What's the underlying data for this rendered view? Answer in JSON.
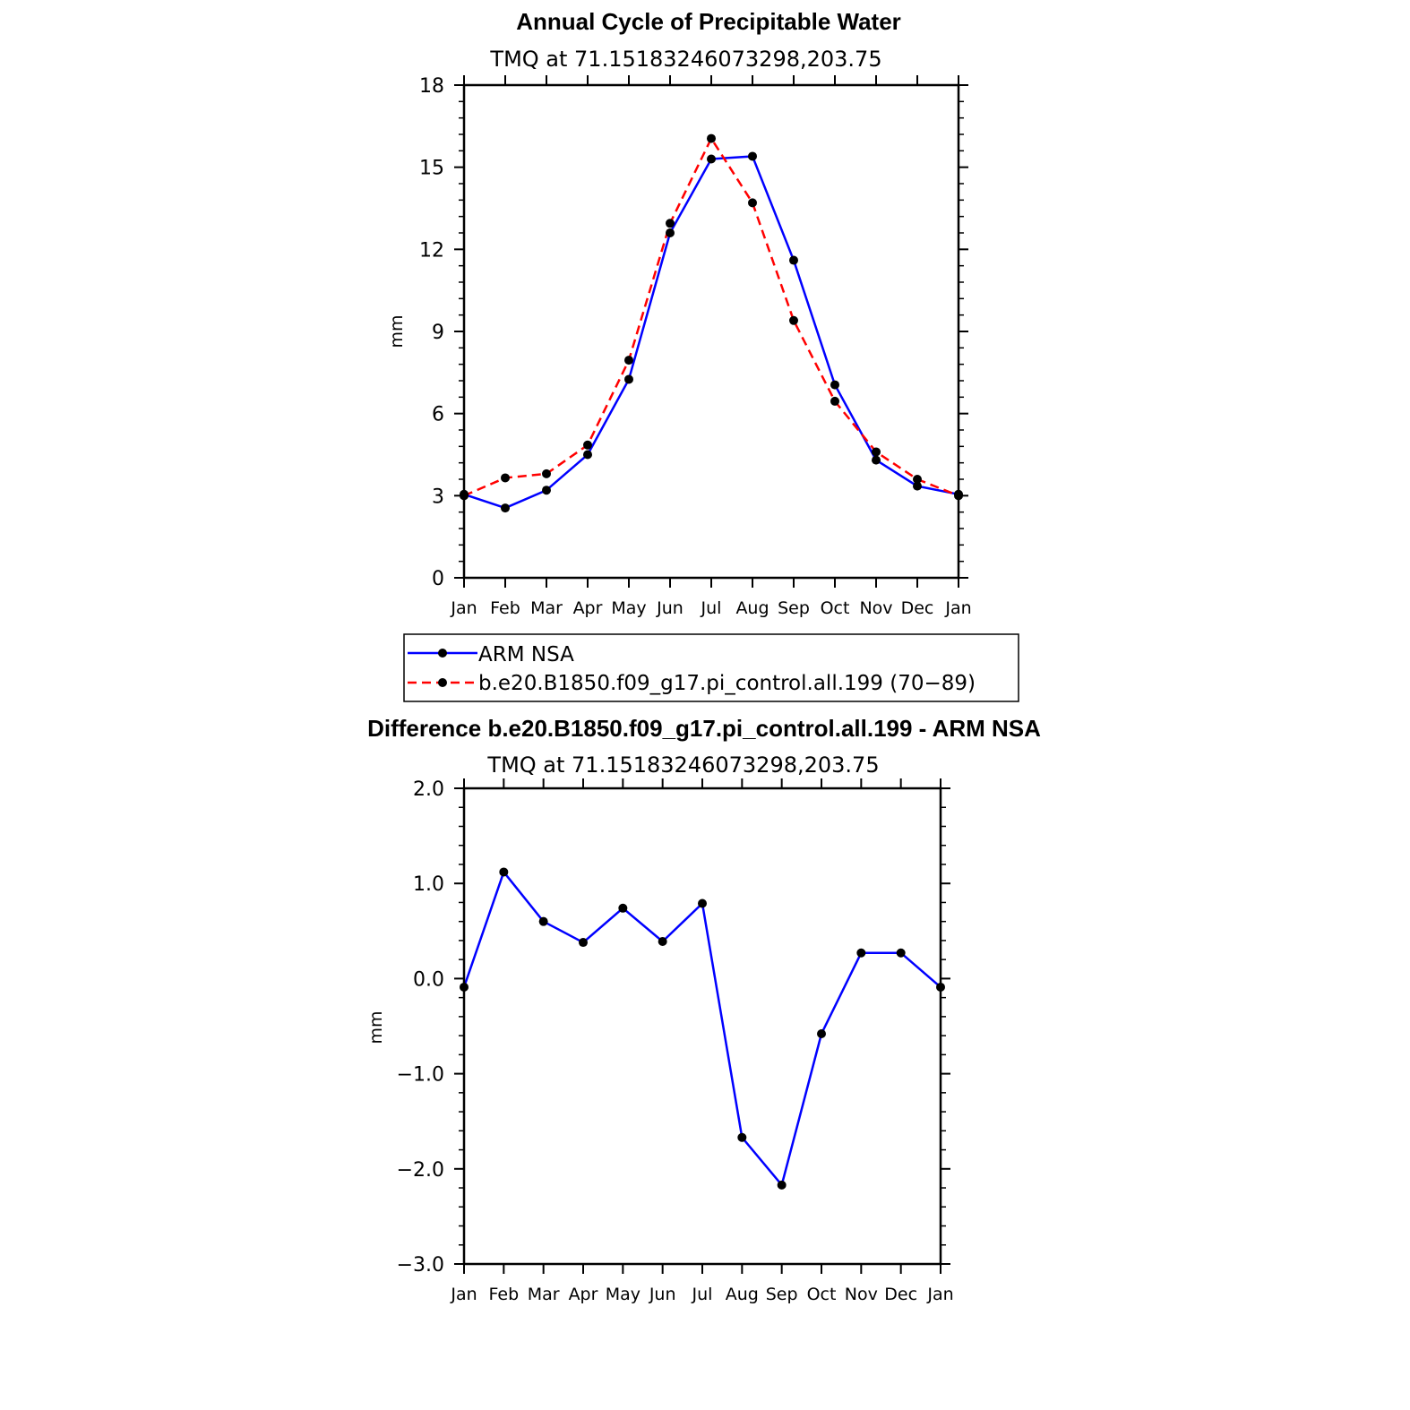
{
  "chart_data": [
    {
      "type": "line",
      "title": "Annual Cycle of Precipitable Water",
      "subtitle": "TMQ at 71.15183246073298,203.75",
      "ylabel": "mm",
      "xlabel": "",
      "ylim": [
        0,
        18
      ],
      "yticks": [
        0,
        3,
        6,
        9,
        12,
        15,
        18
      ],
      "ytick_labels": [
        "0",
        "3",
        "6",
        "9",
        "12",
        "15",
        "18"
      ],
      "categories": [
        "Jan",
        "Feb",
        "Mar",
        "Apr",
        "May",
        "Jun",
        "Jul",
        "Aug",
        "Sep",
        "Oct",
        "Nov",
        "Dec",
        "Jan"
      ],
      "series": [
        {
          "name": "ARM NSA",
          "color": "#0000ff",
          "dash": "solid",
          "values": [
            3.05,
            2.55,
            3.2,
            4.5,
            7.25,
            12.6,
            15.3,
            15.4,
            11.6,
            7.05,
            4.3,
            3.35,
            3.05
          ]
        },
        {
          "name": "b.e20.B1850.f09_g17.pi_control.all.199 (70−89)",
          "color": "#ff0000",
          "dash": "dashed",
          "values": [
            3.0,
            3.65,
            3.8,
            4.85,
            7.95,
            12.95,
            16.05,
            13.7,
            9.4,
            6.45,
            4.6,
            3.6,
            3.0
          ]
        }
      ],
      "legend": "bottom"
    },
    {
      "type": "line",
      "title": "Difference b.e20.B1850.f09_g17.pi_control.all.199 - ARM NSA",
      "subtitle": "TMQ at 71.15183246073298,203.75",
      "ylabel": "mm",
      "xlabel": "",
      "ylim": [
        -3.0,
        2.0
      ],
      "yticks": [
        -3.0,
        -2.0,
        -1.0,
        0.0,
        1.0,
        2.0
      ],
      "ytick_labels": [
        "−3.0",
        "−2.0",
        "−1.0",
        "0.0",
        "1.0",
        "2.0"
      ],
      "categories": [
        "Jan",
        "Feb",
        "Mar",
        "Apr",
        "May",
        "Jun",
        "Jul",
        "Aug",
        "Sep",
        "Oct",
        "Nov",
        "Dec",
        "Jan"
      ],
      "series": [
        {
          "name": "Difference",
          "color": "#0000ff",
          "dash": "solid",
          "values": [
            -0.09,
            1.12,
            0.6,
            0.38,
            0.74,
            0.39,
            0.79,
            -1.67,
            -2.17,
            -0.58,
            0.27,
            0.27,
            -0.09
          ]
        }
      ]
    }
  ]
}
